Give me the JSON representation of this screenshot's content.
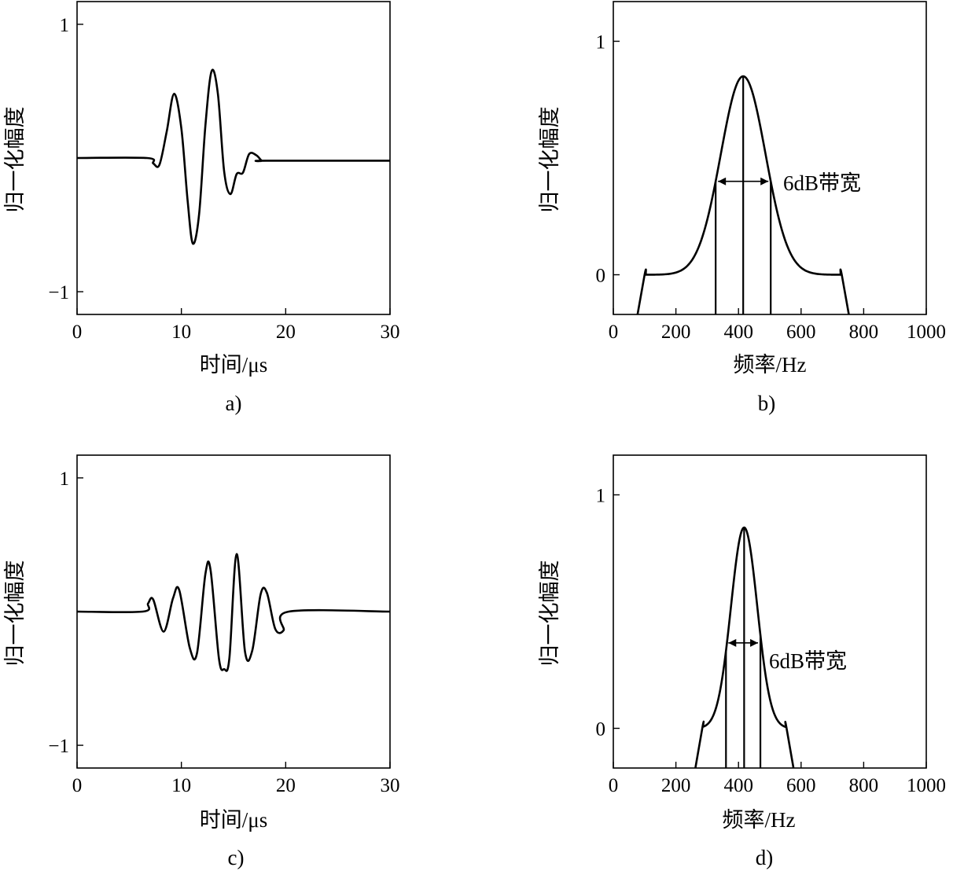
{
  "chart_data": [
    {
      "type": "line",
      "panel_label": "a)",
      "xlabel": "时间/μs",
      "ylabel": "归一化幅度",
      "xlim": [
        0,
        30
      ],
      "ylim": [
        -1.17,
        1.17
      ],
      "x_ticks": [
        0,
        10,
        20,
        30
      ],
      "y_ticks": [
        -1,
        1
      ],
      "y_tick_labels": [
        "−1",
        "1"
      ],
      "grid": false,
      "series": [
        {
          "x": [
            0,
            6.7,
            7.3,
            7.9,
            8.6,
            9.3,
            10.0,
            10.6,
            11.1,
            11.7,
            12.3,
            12.9,
            13.5,
            14.1,
            14.7,
            15.3,
            15.9,
            16.5,
            17.2,
            17.7,
            18.1,
            30
          ],
          "y": [
            0.0,
            0.0,
            -0.04,
            -0.05,
            0.2,
            0.48,
            0.22,
            -0.32,
            -0.64,
            -0.42,
            0.24,
            0.65,
            0.48,
            -0.1,
            -0.27,
            -0.12,
            -0.11,
            0.03,
            0.02,
            -0.02,
            -0.02,
            -0.02
          ]
        }
      ]
    },
    {
      "type": "line",
      "panel_label": "b)",
      "xlabel": "频率/Hz",
      "ylabel": "归一化幅度",
      "xlim": [
        0,
        1000
      ],
      "ylim": [
        -0.17,
        1.17
      ],
      "x_ticks": [
        0,
        200,
        400,
        600,
        800,
        1000
      ],
      "y_ticks": [
        0,
        1
      ],
      "grid": false,
      "center_freq": 415,
      "band_6db": [
        327,
        503
      ],
      "peak": 0.85,
      "annotation": "6dB带宽",
      "series": [
        {
          "curve": "gaussian",
          "center": 415,
          "peak": 0.85,
          "half_width_at_0_4": 88,
          "x_range": [
            100,
            730
          ]
        }
      ]
    },
    {
      "type": "line",
      "panel_label": "c)",
      "xlabel": "时间/μs",
      "ylabel": "归一化幅度",
      "xlim": [
        0,
        30
      ],
      "ylim": [
        -1.17,
        1.17
      ],
      "x_ticks": [
        0,
        10,
        20,
        30
      ],
      "y_ticks": [
        -1,
        1
      ],
      "y_tick_labels": [
        "−1",
        "1"
      ],
      "grid": false,
      "series": [
        {
          "x": [
            0,
            6.3,
            6.8,
            7.3,
            8.3,
            9.2,
            9.8,
            10.8,
            11.5,
            12.3,
            12.8,
            13.6,
            14.1,
            14.6,
            15.3,
            16.1,
            16.8,
            17.6,
            18.2,
            19.0,
            19.8,
            20.3,
            30
          ],
          "y": [
            0.0,
            0.0,
            0.06,
            0.09,
            -0.15,
            0.1,
            0.16,
            -0.27,
            -0.31,
            0.28,
            0.31,
            -0.35,
            -0.43,
            -0.35,
            0.43,
            -0.3,
            -0.29,
            0.13,
            0.14,
            -0.13,
            -0.14,
            0.0,
            0.0
          ]
        }
      ]
    },
    {
      "type": "line",
      "panel_label": "d)",
      "xlabel": "频率/Hz",
      "ylabel": "归一化幅度",
      "xlim": [
        0,
        1000
      ],
      "ylim": [
        -0.17,
        1.17
      ],
      "x_ticks": [
        0,
        200,
        400,
        600,
        800,
        1000
      ],
      "y_ticks": [
        0,
        1
      ],
      "grid": false,
      "center_freq": 418,
      "band_6db": [
        360,
        470
      ],
      "peak": 0.86,
      "annotation": "6dB带宽",
      "series": [
        {
          "curve": "gaussian",
          "center": 418,
          "peak": 0.86,
          "half_width_at_0_4": 52,
          "x_range": [
            285,
            553
          ]
        }
      ]
    }
  ]
}
